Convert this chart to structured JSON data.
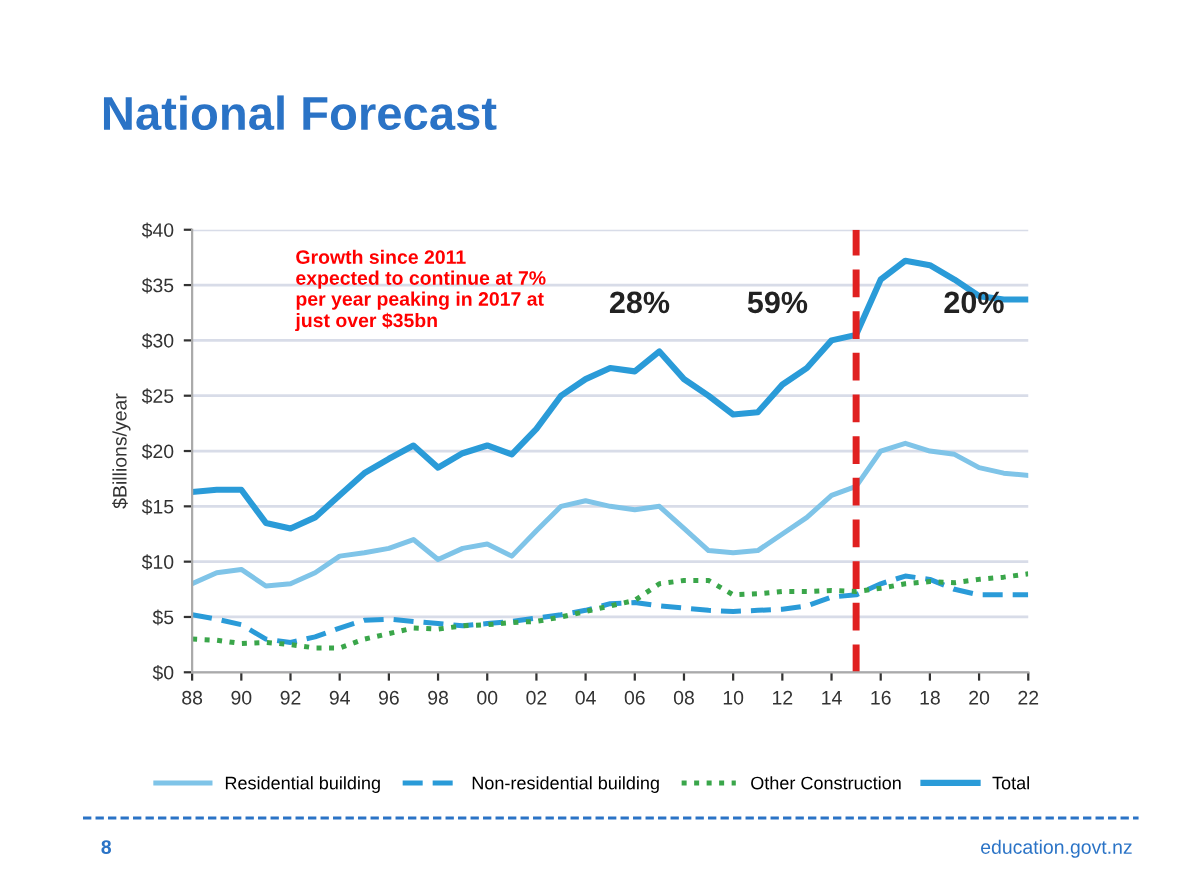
{
  "chart_data": {
    "type": "line",
    "title": "National Forecast",
    "ylabel": "$Billions/year",
    "x": [
      1988,
      1989,
      1990,
      1991,
      1992,
      1993,
      1994,
      1995,
      1996,
      1997,
      1998,
      1999,
      2000,
      2001,
      2002,
      2003,
      2004,
      2005,
      2006,
      2007,
      2008,
      2009,
      2010,
      2011,
      2012,
      2013,
      2014,
      2015,
      2016,
      2017,
      2018,
      2019,
      2020,
      2021,
      2022
    ],
    "series": [
      {
        "name": "Residential building",
        "color": "#7fc4e8",
        "line_style": "solid",
        "values": [
          8,
          9,
          9.3,
          7.8,
          8,
          9,
          10.5,
          10.8,
          11.2,
          12,
          10.2,
          11.2,
          11.6,
          10.5,
          12.8,
          15,
          15.5,
          15,
          14.7,
          15,
          13,
          11,
          10.8,
          11,
          12.5,
          14,
          16,
          16.8,
          20,
          20.7,
          20,
          19.7,
          18.5,
          18,
          17.8
        ]
      },
      {
        "name": "Non-residential building",
        "color": "#2a9bd8",
        "line_style": "dashed",
        "values": [
          5.2,
          4.8,
          4.3,
          3,
          2.7,
          3.2,
          4,
          4.7,
          4.8,
          4.6,
          4.4,
          4.2,
          4.4,
          4.6,
          4.9,
          5.2,
          5.6,
          6.2,
          6.3,
          6,
          5.8,
          5.6,
          5.5,
          5.6,
          5.7,
          6,
          6.8,
          7,
          8,
          8.7,
          8.4,
          7.5,
          7,
          7,
          7
        ]
      },
      {
        "name": "Other Construction",
        "color": "#3aa64a",
        "line_style": "dotted",
        "values": [
          3,
          2.9,
          2.6,
          2.7,
          2.5,
          2.2,
          2.2,
          3,
          3.5,
          4,
          3.9,
          4.2,
          4.3,
          4.5,
          4.6,
          5,
          5.5,
          6,
          6.5,
          8,
          8.3,
          8.3,
          7,
          7.1,
          7.3,
          7.3,
          7.4,
          7.3,
          7.6,
          8,
          8.2,
          8.1,
          8.4,
          8.6,
          8.9
        ]
      },
      {
        "name": "Total",
        "color": "#2a9bd8",
        "line_style": "solid",
        "values": [
          16.3,
          16.5,
          16.5,
          13.5,
          13,
          14,
          16,
          18,
          19.3,
          20.5,
          18.5,
          19.8,
          20.5,
          19.7,
          22,
          25,
          26.5,
          27.5,
          27.2,
          29,
          26.5,
          25,
          23.3,
          23.5,
          26,
          27.5,
          30,
          30.5,
          35.5,
          37.2,
          36.8,
          35.5,
          34,
          33.7,
          33.7
        ]
      }
    ],
    "xlim": [
      1988,
      2022
    ],
    "xticks": [
      {
        "value": 1988,
        "label": "88"
      },
      {
        "value": 1990,
        "label": "90"
      },
      {
        "value": 1992,
        "label": "92"
      },
      {
        "value": 1994,
        "label": "94"
      },
      {
        "value": 1996,
        "label": "96"
      },
      {
        "value": 1998,
        "label": "98"
      },
      {
        "value": 2000,
        "label": "00"
      },
      {
        "value": 2002,
        "label": "02"
      },
      {
        "value": 2004,
        "label": "04"
      },
      {
        "value": 2006,
        "label": "06"
      },
      {
        "value": 2008,
        "label": "08"
      },
      {
        "value": 2010,
        "label": "10"
      },
      {
        "value": 2012,
        "label": "12"
      },
      {
        "value": 2014,
        "label": "14"
      },
      {
        "value": 2016,
        "label": "16"
      },
      {
        "value": 2018,
        "label": "18"
      },
      {
        "value": 2020,
        "label": "20"
      },
      {
        "value": 2022,
        "label": "22"
      }
    ],
    "ylim": [
      0,
      40
    ],
    "yticks": [
      {
        "value": 0,
        "label": "$0"
      },
      {
        "value": 5,
        "label": "$5"
      },
      {
        "value": 10,
        "label": "$10"
      },
      {
        "value": 15,
        "label": "$15"
      },
      {
        "value": 20,
        "label": "$20"
      },
      {
        "value": 25,
        "label": "$25"
      },
      {
        "value": 30,
        "label": "$30"
      },
      {
        "value": 35,
        "label": "$35"
      },
      {
        "value": 40,
        "label": "$40"
      }
    ],
    "grid": "y",
    "legend": "bottom",
    "marker": "none",
    "ref_lines": [
      {
        "axis": "x",
        "value": 2015,
        "color": "#e02020",
        "line_style": "dashed"
      }
    ],
    "annotations": [
      "Growth since 2011\nexpected to continue at 7%\nper year peaking in 2017 at\njust over $35bn",
      "28%",
      "59%",
      "20%",
      "8",
      "education.govt.nz"
    ]
  }
}
